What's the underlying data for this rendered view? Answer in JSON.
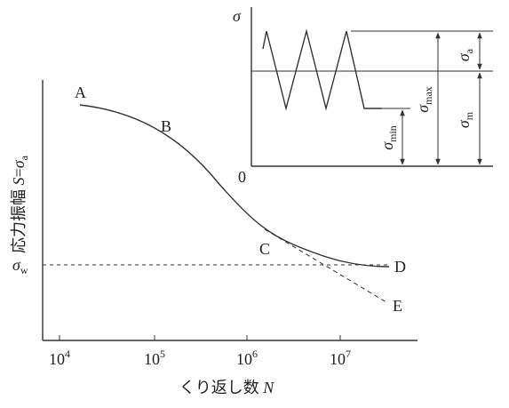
{
  "title": {
    "y_label": "応力振幅",
    "y_symbol": "S",
    "y_equals": "=",
    "y_sigma": "σ",
    "y_sub": "a"
  },
  "x_axis": {
    "label": "くり返し数",
    "symbol": "N",
    "ticks": [
      {
        "base": "10",
        "exp": "4"
      },
      {
        "base": "10",
        "exp": "5"
      },
      {
        "base": "10",
        "exp": "6"
      },
      {
        "base": "10",
        "exp": "7"
      }
    ]
  },
  "points": {
    "A": "A",
    "B": "B",
    "C": "C",
    "D": "D",
    "E": "E"
  },
  "fatigue_limit": {
    "sigma": "σ",
    "sub": "w"
  },
  "inset": {
    "axis": "σ",
    "origin": "0",
    "amplitude": {
      "sigma": "σ",
      "sub": "a"
    },
    "max": {
      "sigma": "σ",
      "sub": "max"
    },
    "mean": {
      "sigma": "σ",
      "sub": "m"
    },
    "min": {
      "sigma": "σ",
      "sub": "min"
    }
  }
}
